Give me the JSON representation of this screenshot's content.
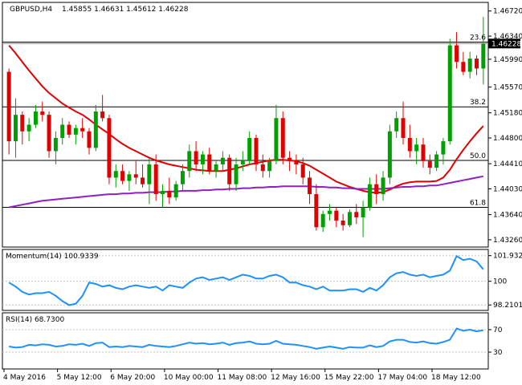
{
  "header": {
    "symbol": "GBPUSD,H4",
    "ohlc": "1.45855 1.46631 1.45612 1.46228"
  },
  "colors": {
    "bull": "#00a000",
    "bear": "#e00000",
    "ma_fast": "#e00000",
    "ma_slow": "#9020c0",
    "indicator": "#1e90ff",
    "price_tag_bg": "#000000"
  },
  "chart_data": [
    {
      "type": "candlestick",
      "title": "GBPUSD,H4",
      "ylim": [
        1.4315,
        1.4685
      ],
      "y_ticks": [
        1.4672,
        1.4634,
        1.4599,
        1.4557,
        1.4518,
        1.448,
        1.4441,
        1.4403,
        1.4364,
        1.4326
      ],
      "y_tick_labels": [
        "1.46720",
        "1.46340",
        "1.45990",
        "1.45570",
        "1.45180",
        "1.44800",
        "1.44410",
        "1.44030",
        "1.43640",
        "1.43260"
      ],
      "last_price": 1.46228,
      "last_price_label": "1.46228",
      "fib_levels": [
        {
          "label": "23.6",
          "value": 1.4625
        },
        {
          "label": "38.2",
          "value": 1.4527
        },
        {
          "label": "50.0",
          "value": 1.4446
        },
        {
          "label": "61.8",
          "value": 1.4375
        }
      ],
      "candles": [
        [
          1.458,
          1.4585,
          1.4455,
          1.4475
        ],
        [
          1.4475,
          1.454,
          1.445,
          1.4515
        ],
        [
          1.4515,
          1.452,
          1.447,
          1.449
        ],
        [
          1.449,
          1.451,
          1.4475,
          1.45
        ],
        [
          1.45,
          1.453,
          1.4495,
          1.452
        ],
        [
          1.452,
          1.4535,
          1.4505,
          1.4515
        ],
        [
          1.4515,
          1.452,
          1.445,
          1.446
        ],
        [
          1.446,
          1.449,
          1.444,
          1.448
        ],
        [
          1.448,
          1.451,
          1.447,
          1.45
        ],
        [
          1.45,
          1.4505,
          1.448,
          1.4485
        ],
        [
          1.4485,
          1.45,
          1.447,
          1.4495
        ],
        [
          1.4495,
          1.451,
          1.448,
          1.449
        ],
        [
          1.449,
          1.4495,
          1.4455,
          1.4465
        ],
        [
          1.4465,
          1.453,
          1.446,
          1.452
        ],
        [
          1.452,
          1.4545,
          1.4505,
          1.451
        ],
        [
          1.451,
          1.4515,
          1.441,
          1.442
        ],
        [
          1.442,
          1.444,
          1.4405,
          1.443
        ],
        [
          1.443,
          1.444,
          1.441,
          1.4415
        ],
        [
          1.4415,
          1.443,
          1.44,
          1.4425
        ],
        [
          1.4425,
          1.4445,
          1.441,
          1.442
        ],
        [
          1.442,
          1.444,
          1.4405,
          1.441
        ],
        [
          1.441,
          1.445,
          1.438,
          1.444
        ],
        [
          1.444,
          1.4455,
          1.4385,
          1.4395
        ],
        [
          1.4395,
          1.441,
          1.4375,
          1.44
        ],
        [
          1.44,
          1.442,
          1.438,
          1.439
        ],
        [
          1.439,
          1.4415,
          1.4385,
          1.441
        ],
        [
          1.441,
          1.444,
          1.44,
          1.443
        ],
        [
          1.443,
          1.447,
          1.442,
          1.446
        ],
        [
          1.446,
          1.4475,
          1.443,
          1.444
        ],
        [
          1.444,
          1.446,
          1.4425,
          1.4455
        ],
        [
          1.4455,
          1.4465,
          1.4425,
          1.443
        ],
        [
          1.443,
          1.4445,
          1.442,
          1.444
        ],
        [
          1.444,
          1.446,
          1.443,
          1.445
        ],
        [
          1.445,
          1.4455,
          1.44,
          1.441
        ],
        [
          1.441,
          1.445,
          1.44,
          1.444
        ],
        [
          1.444,
          1.446,
          1.443,
          1.4445
        ],
        [
          1.4445,
          1.449,
          1.444,
          1.448
        ],
        [
          1.448,
          1.4485,
          1.443,
          1.444
        ],
        [
          1.444,
          1.4455,
          1.442,
          1.443
        ],
        [
          1.443,
          1.445,
          1.442,
          1.4445
        ],
        [
          1.4445,
          1.453,
          1.444,
          1.451
        ],
        [
          1.451,
          1.452,
          1.444,
          1.445
        ],
        [
          1.445,
          1.446,
          1.443,
          1.4445
        ],
        [
          1.4445,
          1.4455,
          1.4425,
          1.444
        ],
        [
          1.444,
          1.445,
          1.441,
          1.442
        ],
        [
          1.442,
          1.443,
          1.438,
          1.4395
        ],
        [
          1.4395,
          1.441,
          1.434,
          1.4345
        ],
        [
          1.4345,
          1.437,
          1.4338,
          1.4365
        ],
        [
          1.4365,
          1.438,
          1.4355,
          1.437
        ],
        [
          1.437,
          1.4375,
          1.4345,
          1.4355
        ],
        [
          1.4355,
          1.4365,
          1.434,
          1.4348
        ],
        [
          1.4348,
          1.4372,
          1.4345,
          1.4368
        ],
        [
          1.4368,
          1.438,
          1.435,
          1.436
        ],
        [
          1.436,
          1.4385,
          1.433,
          1.4375
        ],
        [
          1.4375,
          1.442,
          1.437,
          1.441
        ],
        [
          1.441,
          1.4425,
          1.438,
          1.4395
        ],
        [
          1.4395,
          1.443,
          1.4385,
          1.442
        ],
        [
          1.442,
          1.45,
          1.441,
          1.449
        ],
        [
          1.449,
          1.452,
          1.448,
          1.451
        ],
        [
          1.451,
          1.4535,
          1.447,
          1.448
        ],
        [
          1.448,
          1.45,
          1.445,
          1.446
        ],
        [
          1.446,
          1.448,
          1.444,
          1.447
        ],
        [
          1.447,
          1.448,
          1.4435,
          1.4445
        ],
        [
          1.4445,
          1.4455,
          1.4425,
          1.4435
        ],
        [
          1.4435,
          1.446,
          1.443,
          1.4455
        ],
        [
          1.4455,
          1.448,
          1.444,
          1.4475
        ],
        [
          1.4475,
          1.463,
          1.447,
          1.462
        ],
        [
          1.462,
          1.464,
          1.4585,
          1.4595
        ],
        [
          1.4595,
          1.461,
          1.4575,
          1.458
        ],
        [
          1.458,
          1.461,
          1.457,
          1.46
        ],
        [
          1.46,
          1.4605,
          1.4575,
          1.4585
        ],
        [
          1.4585,
          1.4663,
          1.4561,
          1.4623
        ]
      ],
      "moving_averages": [
        {
          "values": [
            1.462,
            1.4608,
            1.4595,
            1.4582,
            1.457,
            1.4558,
            1.4548,
            1.454,
            1.4532,
            1.4526,
            1.452,
            1.4515,
            1.4508,
            1.45,
            1.4493,
            1.4486,
            1.4478,
            1.4471,
            1.4465,
            1.446,
            1.4455,
            1.445,
            1.4446,
            1.4443,
            1.444,
            1.4438,
            1.4436,
            1.4434,
            1.4432,
            1.4431,
            1.443,
            1.443,
            1.443,
            1.4432,
            1.4434,
            1.4437,
            1.444,
            1.4442,
            1.4444,
            1.4446,
            1.4447,
            1.4447,
            1.4446,
            1.4445,
            1.4442,
            1.4438,
            1.4432,
            1.4426,
            1.442,
            1.4414,
            1.441,
            1.4406,
            1.4403,
            1.44,
            1.4398,
            1.4397,
            1.4398,
            1.4402,
            1.4407,
            1.4411,
            1.4413,
            1.4414,
            1.4414,
            1.4414,
            1.4415,
            1.442,
            1.4432,
            1.4448,
            1.4462,
            1.4475,
            1.4487,
            1.4498
          ]
        },
        {
          "values": [
            1.4375,
            1.4377,
            1.4379,
            1.4381,
            1.4383,
            1.4385,
            1.4386,
            1.4387,
            1.4388,
            1.4389,
            1.439,
            1.4391,
            1.4392,
            1.4393,
            1.4394,
            1.4395,
            1.4395,
            1.4396,
            1.4396,
            1.4397,
            1.4397,
            1.4398,
            1.4398,
            1.4398,
            1.4399,
            1.4399,
            1.44,
            1.44,
            1.44,
            1.4401,
            1.4401,
            1.4402,
            1.4402,
            1.4403,
            1.4403,
            1.4404,
            1.4404,
            1.4405,
            1.4405,
            1.4406,
            1.4406,
            1.4407,
            1.4407,
            1.4407,
            1.4407,
            1.4407,
            1.4406,
            1.4406,
            1.4405,
            1.4405,
            1.4404,
            1.4404,
            1.4403,
            1.4403,
            1.4403,
            1.4403,
            1.4403,
            1.4404,
            1.4405,
            1.4406,
            1.4406,
            1.4407,
            1.4407,
            1.4408,
            1.4408,
            1.441,
            1.4412,
            1.4414,
            1.4416,
            1.4418,
            1.442,
            1.4422
          ]
        }
      ]
    },
    {
      "type": "line",
      "title": "Momentum(14) 100.9339",
      "ylim": [
        97.8,
        102.4
      ],
      "y_ticks": [
        101.9328,
        100,
        98.2101
      ],
      "y_tick_labels": [
        "101.9328",
        "100",
        "98.2101"
      ],
      "reference_level": 100,
      "values": [
        99.9,
        99.6,
        99.2,
        99.0,
        99.1,
        99.1,
        99.2,
        98.9,
        98.5,
        98.2,
        98.3,
        98.9,
        99.9,
        99.8,
        99.6,
        99.7,
        99.5,
        99.4,
        99.6,
        99.7,
        99.6,
        99.5,
        99.6,
        99.3,
        99.7,
        99.6,
        99.5,
        99.9,
        100.2,
        100.3,
        100.1,
        100.2,
        100.3,
        100.1,
        100.3,
        100.5,
        100.4,
        100.2,
        100.2,
        100.4,
        100.5,
        100.3,
        99.9,
        99.9,
        99.7,
        99.6,
        99.4,
        99.6,
        99.3,
        99.3,
        99.3,
        99.4,
        99.4,
        99.2,
        99.5,
        99.3,
        99.7,
        100.3,
        100.6,
        100.7,
        100.5,
        100.4,
        100.5,
        100.3,
        100.4,
        100.5,
        100.8,
        101.9,
        101.6,
        101.7,
        101.5,
        100.9
      ]
    },
    {
      "type": "line",
      "title": "RSI(14) 68.7300",
      "ylim": [
        0,
        100
      ],
      "y_ticks": [
        70,
        30
      ],
      "y_tick_labels": [
        "70",
        "30"
      ],
      "x_tick_labels": [
        "4 May 2016",
        "5 May 12:00",
        "6 May 20:00",
        "10 May 00:00",
        "11 May 08:00",
        "12 May 16:00",
        "15 May 22:00",
        "17 May 04:00",
        "18 May 12:00"
      ],
      "values": [
        40,
        38,
        39,
        43,
        42,
        44,
        43,
        40,
        41,
        44,
        43,
        45,
        41,
        46,
        47,
        39,
        40,
        39,
        41,
        40,
        39,
        43,
        41,
        40,
        39,
        41,
        44,
        47,
        45,
        46,
        44,
        45,
        47,
        43,
        46,
        47,
        49,
        45,
        44,
        45,
        50,
        45,
        44,
        43,
        41,
        39,
        36,
        38,
        40,
        38,
        36,
        39,
        38,
        38,
        42,
        39,
        41,
        49,
        52,
        52,
        48,
        47,
        49,
        46,
        45,
        48,
        52,
        72,
        68,
        70,
        67,
        69
      ]
    }
  ]
}
